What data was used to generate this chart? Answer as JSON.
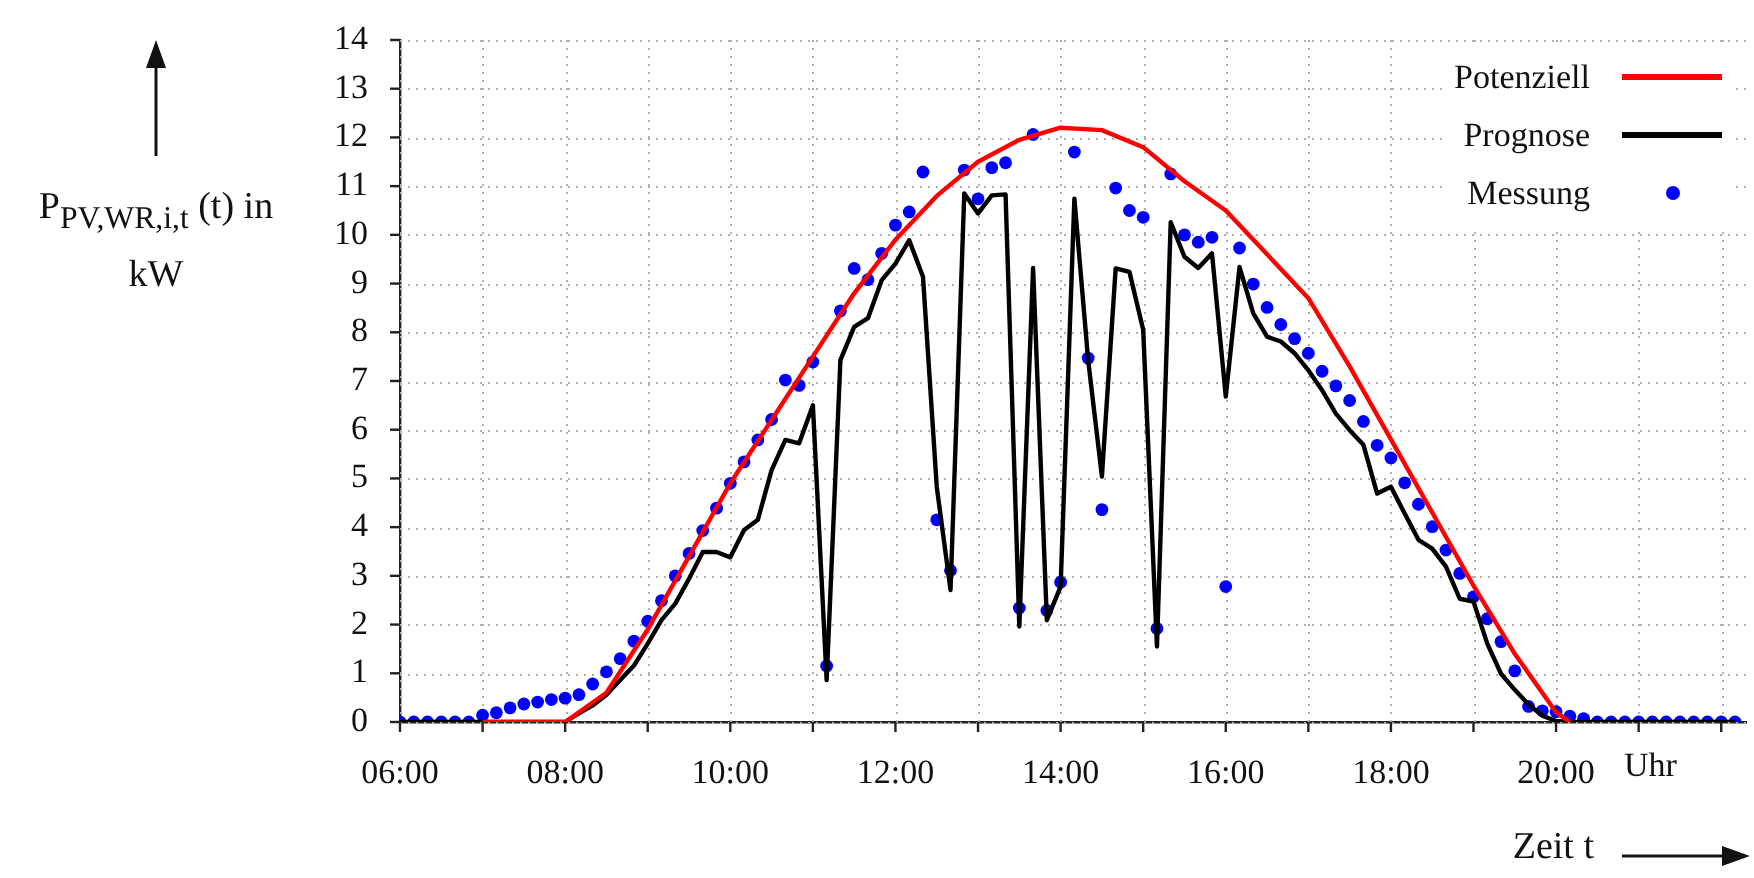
{
  "chart_data": {
    "type": "line",
    "xlabel": "Zeit t",
    "ylabel": "P$_{PV,WR,i,t}$ (t) in kW",
    "annotations": [
      "Uhr"
    ],
    "x": [
      6,
      6.1667,
      6.3333,
      6.5,
      6.6667,
      6.8333,
      7,
      7.1667,
      7.3333,
      7.5,
      7.6667,
      7.8333,
      8,
      8.1667,
      8.3333,
      8.5,
      8.6667,
      8.8333,
      9,
      9.1667,
      9.3333,
      9.5,
      9.6667,
      9.8333,
      10,
      10.1667,
      10.3333,
      10.5,
      10.6667,
      10.8333,
      11,
      11.1667,
      11.3333,
      11.5,
      11.6667,
      11.8333,
      12,
      12.1667,
      12.3333,
      12.5,
      12.6667,
      12.8333,
      13,
      13.1667,
      13.3333,
      13.5,
      13.6667,
      13.8333,
      14,
      14.1667,
      14.3333,
      14.5,
      14.6667,
      14.8333,
      15,
      15.1667,
      15.3333,
      15.5,
      15.6667,
      15.8333,
      16,
      16.1667,
      16.3333,
      16.5,
      16.6667,
      16.8333,
      17,
      17.1667,
      17.3333,
      17.5,
      17.6667,
      17.8333,
      18,
      18.1667,
      18.3333,
      18.5,
      18.6667,
      18.8333,
      19,
      19.1667,
      19.3333,
      19.5,
      19.6667,
      19.8333,
      20,
      20.1667,
      20.3333,
      20.5,
      20.6667,
      20.8333,
      21,
      21.1667,
      21.3333,
      21.5,
      21.6667,
      21.8333,
      22,
      22.1667
    ],
    "xlim": [
      6,
      22.3
    ],
    "xticks": [
      {
        "value": 6,
        "label": "06:00"
      },
      {
        "value": 7,
        "label": null
      },
      {
        "value": 8,
        "label": "08:00"
      },
      {
        "value": 9,
        "label": null
      },
      {
        "value": 10,
        "label": "10:00"
      },
      {
        "value": 11,
        "label": null
      },
      {
        "value": 12,
        "label": "12:00"
      },
      {
        "value": 13,
        "label": null
      },
      {
        "value": 14,
        "label": "14:00"
      },
      {
        "value": 15,
        "label": null
      },
      {
        "value": 16,
        "label": "16:00"
      },
      {
        "value": 17,
        "label": null
      },
      {
        "value": 18,
        "label": "18:00"
      },
      {
        "value": 19,
        "label": null
      },
      {
        "value": 20,
        "label": "20:00"
      },
      {
        "value": 21,
        "label": null
      },
      {
        "value": 22,
        "label": null
      }
    ],
    "ylim": [
      0,
      14
    ],
    "yticks": [
      0,
      1,
      2,
      3,
      4,
      5,
      6,
      7,
      8,
      9,
      10,
      11,
      12,
      13,
      14
    ],
    "grid": true,
    "legend": "top right",
    "series": [
      {
        "name": "Potenziell",
        "color": "#ff0000",
        "x": [
          7,
          8,
          8.5,
          9,
          9.5,
          10,
          10.5,
          11,
          11.5,
          12,
          12.5,
          13,
          13.5,
          14,
          14.5,
          15,
          15.5,
          16,
          16.5,
          17,
          17.5,
          18,
          18.5,
          19,
          19.5,
          20,
          20.1667
        ],
        "values": [
          0,
          0,
          0.6,
          1.9,
          3.4,
          4.9,
          6.2,
          7.5,
          8.8,
          9.9,
          10.8,
          11.5,
          11.95,
          12.2,
          12.15,
          11.8,
          11.1,
          10.5,
          9.6,
          8.7,
          7.3,
          5.8,
          4.3,
          2.8,
          1.4,
          0.2,
          0
        ]
      },
      {
        "name": "Prognose",
        "color": "#000000",
        "values": [
          0,
          0,
          0,
          0,
          0,
          0,
          0,
          0,
          0,
          0,
          0,
          0,
          0,
          0.18,
          0.34,
          0.56,
          0.86,
          1.16,
          1.61,
          2.09,
          2.43,
          2.94,
          3.49,
          3.49,
          3.38,
          3.94,
          4.15,
          5.17,
          5.79,
          5.72,
          6.5,
          0.86,
          7.43,
          8.11,
          8.29,
          9.07,
          9.41,
          9.89,
          9.14,
          4.83,
          2.71,
          10.85,
          10.44,
          10.81,
          10.83,
          1.96,
          9.32,
          2.09,
          2.78,
          10.74,
          7.43,
          5.04,
          9.31,
          9.24,
          8.05,
          1.55,
          10.26,
          9.55,
          9.32,
          9.62,
          6.68,
          9.34,
          8.39,
          7.91,
          7.81,
          7.57,
          7.22,
          6.81,
          6.33,
          5.99,
          5.69,
          4.69,
          4.83,
          4.28,
          3.74,
          3.56,
          3.19,
          2.53,
          2.47,
          1.61,
          0.99,
          0.66,
          0.36,
          0.13,
          0.02,
          0,
          0,
          0,
          0,
          0,
          0,
          0,
          0,
          0,
          0,
          0,
          0,
          0
        ]
      },
      {
        "name": "Messung",
        "type": "scatter",
        "marker": "circle",
        "color": "#0000ff",
        "values": [
          0,
          0,
          0,
          0,
          0,
          0,
          0.14,
          0.19,
          0.29,
          0.37,
          0.41,
          0.46,
          0.49,
          0.56,
          0.78,
          1.03,
          1.3,
          1.66,
          2.07,
          2.49,
          3.0,
          3.46,
          3.93,
          4.39,
          4.9,
          5.34,
          5.79,
          6.21,
          7.02,
          6.91,
          7.39,
          1.15,
          8.44,
          9.31,
          9.08,
          9.62,
          10.2,
          10.47,
          11.29,
          4.15,
          3.11,
          11.33,
          10.74,
          11.38,
          11.48,
          2.34,
          12.06,
          2.29,
          2.87,
          11.7,
          7.47,
          4.36,
          10.96,
          10.5,
          10.36,
          1.92,
          11.25,
          10.0,
          9.85,
          9.95,
          2.78,
          9.73,
          8.99,
          8.51,
          8.16,
          7.87,
          7.57,
          7.2,
          6.9,
          6.6,
          6.17,
          5.68,
          5.42,
          4.91,
          4.47,
          4.01,
          3.53,
          3.05,
          2.57,
          2.12,
          1.65,
          1.05,
          0.32,
          0.23,
          0.21,
          0.12,
          0.07,
          0,
          0,
          0,
          0,
          0,
          0,
          0,
          0,
          0,
          0,
          0
        ]
      }
    ]
  }
}
